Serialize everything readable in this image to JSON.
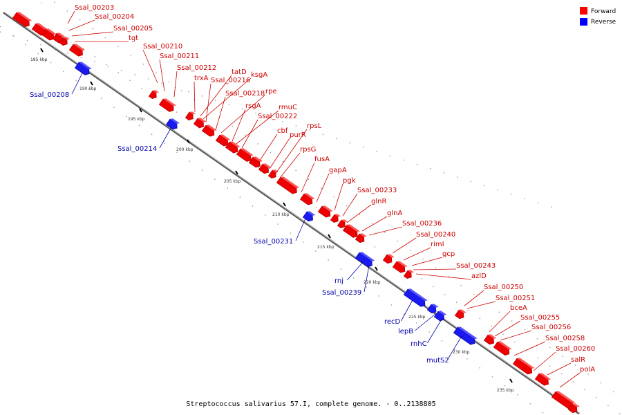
{
  "caption": "Streptococcus salivarius 57.I, complete genome. - 0..2138805",
  "legend": {
    "forward_label": "Forward",
    "reverse_label": "Reverse",
    "forward_color": "#ff0000",
    "reverse_color": "#0000ff"
  },
  "colors": {
    "forward_label": "#cc0000",
    "reverse_label": "#0000aa",
    "axis": "#888888"
  },
  "ticks": [
    "185 kbp",
    "190 kbp",
    "195 kbp",
    "200 kbp",
    "205 kbp",
    "210 kbp",
    "215 kbp",
    "220 kbp",
    "225 kbp",
    "230 kbp",
    "235 kbp"
  ],
  "forward_labels": [
    "Ssal_00203",
    "Ssal_00204",
    "Ssal_00205",
    "tgt",
    "Ssal_00210",
    "Ssal_00211",
    "Ssal_00212",
    "trxA",
    "tatD",
    "ksgA",
    "Ssal_00216",
    "Ssal_00218",
    "rpe",
    "rsgA",
    "rmuC",
    "Ssal_00222",
    "cbf",
    "purR",
    "rpsL",
    "rpsG",
    "fusA",
    "gapA",
    "pgk",
    "Ssal_00233",
    "glnR",
    "glnA",
    "Ssal_00236",
    "Ssal_00240",
    "rimI",
    "gcp",
    "Ssal_00243",
    "azlD",
    "Ssal_00250",
    "Ssal_00251",
    "bceA",
    "Ssal_00255",
    "Ssal_00256",
    "Ssal_00258",
    "Ssal_00260",
    "salR",
    "polA"
  ],
  "reverse_labels": [
    "Ssal_00208",
    "Ssal_00214",
    "Ssal_00231",
    "rnj",
    "Ssal_00239",
    "recD",
    "lepB",
    "rnhC",
    "mutS2"
  ]
}
